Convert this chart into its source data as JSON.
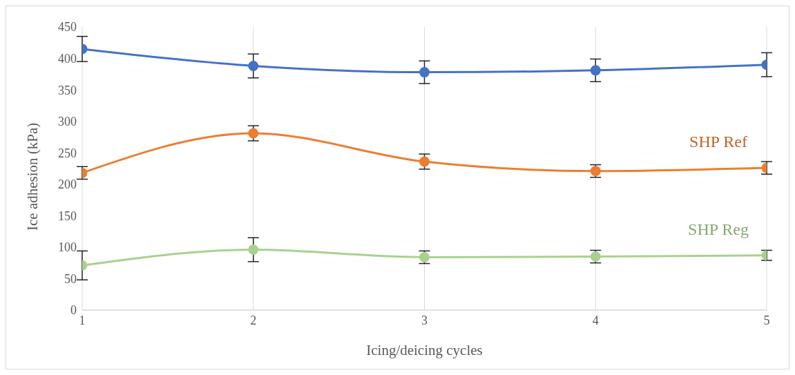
{
  "chart_data": {
    "type": "line",
    "xlabel": "Icing/deicing cycles",
    "ylabel": "Ice adhesion (kPa)",
    "x": [
      1,
      2,
      3,
      4,
      5
    ],
    "xlim": [
      1,
      5
    ],
    "xticks": [
      1,
      2,
      3,
      4,
      5
    ],
    "ylim": [
      0,
      450
    ],
    "yticks": [
      0,
      50,
      100,
      150,
      200,
      250,
      300,
      350,
      400,
      450
    ],
    "grid": "x",
    "legend": false,
    "marker": "circle",
    "line_style": "solid",
    "series": [
      {
        "color": "#4472c4",
        "values": [
          415,
          388,
          378,
          381,
          390
        ],
        "errors": [
          20,
          19,
          18,
          18,
          19
        ]
      },
      {
        "name": "SHP Ref",
        "color": "#ed7d31",
        "values": [
          218,
          281,
          236,
          221,
          226
        ],
        "errors": [
          10,
          12,
          12,
          10,
          10
        ]
      },
      {
        "name": "SHP Reg",
        "color": "#a9d18e",
        "values": [
          71,
          96,
          84,
          85,
          87
        ],
        "errors": [
          23,
          19,
          10,
          10,
          8
        ]
      }
    ]
  }
}
